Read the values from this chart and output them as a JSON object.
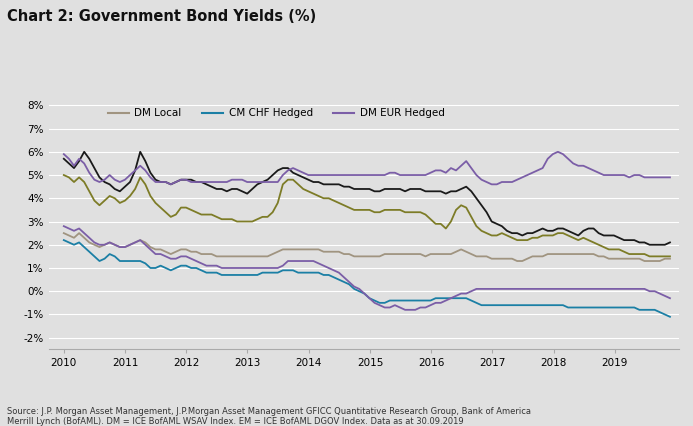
{
  "title": "Chart 2: Government Bond Yields (%)",
  "background_color": "#e0e0e0",
  "source_text": "Source: J.P. Morgan Asset Management, J.P.Morgan Asset Management GFICC Quantitative Research Group, Bank of America\nMerrill Lynch (BofAML). DM = ICE BofAML WSAV Index. EM = ICE BofAML DGOV Index. Data as at 30.09.2019",
  "ylim": [
    -0.025,
    0.085
  ],
  "yticks": [
    -0.02,
    -0.01,
    0.0,
    0.01,
    0.02,
    0.03,
    0.04,
    0.05,
    0.06,
    0.07,
    0.08
  ],
  "ytick_labels": [
    "-2%",
    "-1%",
    "0%",
    "1%",
    "2%",
    "3%",
    "4%",
    "5%",
    "6%",
    "7%",
    "8%"
  ],
  "xlim": [
    2009.75,
    2020.05
  ],
  "xticks": [
    2010,
    2011,
    2012,
    2013,
    2014,
    2015,
    2016,
    2017,
    2018,
    2019
  ],
  "lines": [
    {
      "key": "black",
      "color": "#1a1a1a",
      "linewidth": 1.3,
      "label": null,
      "zorder": 4,
      "values": [
        0.057,
        0.055,
        0.053,
        0.056,
        0.06,
        0.057,
        0.053,
        0.049,
        0.047,
        0.046,
        0.044,
        0.043,
        0.045,
        0.047,
        0.052,
        0.06,
        0.056,
        0.051,
        0.048,
        0.047,
        0.047,
        0.046,
        0.047,
        0.048,
        0.048,
        0.048,
        0.047,
        0.047,
        0.046,
        0.045,
        0.044,
        0.044,
        0.043,
        0.044,
        0.044,
        0.043,
        0.042,
        0.044,
        0.046,
        0.047,
        0.048,
        0.05,
        0.052,
        0.053,
        0.053,
        0.051,
        0.05,
        0.049,
        0.048,
        0.047,
        0.047,
        0.046,
        0.046,
        0.046,
        0.046,
        0.045,
        0.045,
        0.044,
        0.044,
        0.044,
        0.044,
        0.043,
        0.043,
        0.044,
        0.044,
        0.044,
        0.044,
        0.043,
        0.044,
        0.044,
        0.044,
        0.043,
        0.043,
        0.043,
        0.043,
        0.042,
        0.043,
        0.043,
        0.044,
        0.045,
        0.043,
        0.04,
        0.037,
        0.034,
        0.03,
        0.029,
        0.028,
        0.026,
        0.025,
        0.025,
        0.024,
        0.025,
        0.025,
        0.026,
        0.027,
        0.026,
        0.026,
        0.027,
        0.027,
        0.026,
        0.025,
        0.024,
        0.026,
        0.027,
        0.027,
        0.025,
        0.024,
        0.024,
        0.024,
        0.023,
        0.022,
        0.022,
        0.022,
        0.021,
        0.021,
        0.02,
        0.02,
        0.02,
        0.02,
        0.021
      ]
    },
    {
      "key": "olive",
      "color": "#7d7c27",
      "linewidth": 1.3,
      "label": null,
      "zorder": 3,
      "values": [
        0.05,
        0.049,
        0.047,
        0.049,
        0.047,
        0.043,
        0.039,
        0.037,
        0.039,
        0.041,
        0.04,
        0.038,
        0.039,
        0.041,
        0.044,
        0.049,
        0.046,
        0.041,
        0.038,
        0.036,
        0.034,
        0.032,
        0.033,
        0.036,
        0.036,
        0.035,
        0.034,
        0.033,
        0.033,
        0.033,
        0.032,
        0.031,
        0.031,
        0.031,
        0.03,
        0.03,
        0.03,
        0.03,
        0.031,
        0.032,
        0.032,
        0.034,
        0.038,
        0.046,
        0.048,
        0.048,
        0.046,
        0.044,
        0.043,
        0.042,
        0.041,
        0.04,
        0.04,
        0.039,
        0.038,
        0.037,
        0.036,
        0.035,
        0.035,
        0.035,
        0.035,
        0.034,
        0.034,
        0.035,
        0.035,
        0.035,
        0.035,
        0.034,
        0.034,
        0.034,
        0.034,
        0.033,
        0.031,
        0.029,
        0.029,
        0.027,
        0.03,
        0.035,
        0.037,
        0.036,
        0.032,
        0.028,
        0.026,
        0.025,
        0.024,
        0.024,
        0.025,
        0.024,
        0.023,
        0.022,
        0.022,
        0.022,
        0.023,
        0.023,
        0.024,
        0.024,
        0.024,
        0.025,
        0.025,
        0.024,
        0.023,
        0.022,
        0.023,
        0.022,
        0.021,
        0.02,
        0.019,
        0.018,
        0.018,
        0.018,
        0.017,
        0.016,
        0.016,
        0.016,
        0.016,
        0.015,
        0.015,
        0.015,
        0.015,
        0.015
      ]
    },
    {
      "key": "gray",
      "color": "#a09480",
      "linewidth": 1.3,
      "label": "DM Local",
      "zorder": 2,
      "values": [
        0.025,
        0.024,
        0.023,
        0.025,
        0.023,
        0.021,
        0.02,
        0.019,
        0.02,
        0.021,
        0.02,
        0.019,
        0.019,
        0.02,
        0.021,
        0.022,
        0.021,
        0.019,
        0.018,
        0.018,
        0.017,
        0.016,
        0.017,
        0.018,
        0.018,
        0.017,
        0.017,
        0.016,
        0.016,
        0.016,
        0.015,
        0.015,
        0.015,
        0.015,
        0.015,
        0.015,
        0.015,
        0.015,
        0.015,
        0.015,
        0.015,
        0.016,
        0.017,
        0.018,
        0.018,
        0.018,
        0.018,
        0.018,
        0.018,
        0.018,
        0.018,
        0.017,
        0.017,
        0.017,
        0.017,
        0.016,
        0.016,
        0.015,
        0.015,
        0.015,
        0.015,
        0.015,
        0.015,
        0.016,
        0.016,
        0.016,
        0.016,
        0.016,
        0.016,
        0.016,
        0.016,
        0.015,
        0.016,
        0.016,
        0.016,
        0.016,
        0.016,
        0.017,
        0.018,
        0.017,
        0.016,
        0.015,
        0.015,
        0.015,
        0.014,
        0.014,
        0.014,
        0.014,
        0.014,
        0.013,
        0.013,
        0.014,
        0.015,
        0.015,
        0.015,
        0.016,
        0.016,
        0.016,
        0.016,
        0.016,
        0.016,
        0.016,
        0.016,
        0.016,
        0.016,
        0.015,
        0.015,
        0.014,
        0.014,
        0.014,
        0.014,
        0.014,
        0.014,
        0.014,
        0.013,
        0.013,
        0.013,
        0.013,
        0.014,
        0.014
      ]
    },
    {
      "key": "teal",
      "color": "#1b7fa5",
      "linewidth": 1.3,
      "label": "CM CHF Hedged",
      "zorder": 5,
      "values": [
        0.022,
        0.021,
        0.02,
        0.021,
        0.019,
        0.017,
        0.015,
        0.013,
        0.014,
        0.016,
        0.015,
        0.013,
        0.013,
        0.013,
        0.013,
        0.013,
        0.012,
        0.01,
        0.01,
        0.011,
        0.01,
        0.009,
        0.01,
        0.011,
        0.011,
        0.01,
        0.01,
        0.009,
        0.008,
        0.008,
        0.008,
        0.007,
        0.007,
        0.007,
        0.007,
        0.007,
        0.007,
        0.007,
        0.007,
        0.008,
        0.008,
        0.008,
        0.008,
        0.009,
        0.009,
        0.009,
        0.008,
        0.008,
        0.008,
        0.008,
        0.008,
        0.007,
        0.007,
        0.006,
        0.005,
        0.004,
        0.003,
        0.001,
        0.0,
        -0.001,
        -0.003,
        -0.004,
        -0.005,
        -0.005,
        -0.004,
        -0.004,
        -0.004,
        -0.004,
        -0.004,
        -0.004,
        -0.004,
        -0.004,
        -0.004,
        -0.003,
        -0.003,
        -0.003,
        -0.003,
        -0.003,
        -0.003,
        -0.003,
        -0.004,
        -0.005,
        -0.006,
        -0.006,
        -0.006,
        -0.006,
        -0.006,
        -0.006,
        -0.006,
        -0.006,
        -0.006,
        -0.006,
        -0.006,
        -0.006,
        -0.006,
        -0.006,
        -0.006,
        -0.006,
        -0.006,
        -0.007,
        -0.007,
        -0.007,
        -0.007,
        -0.007,
        -0.007,
        -0.007,
        -0.007,
        -0.007,
        -0.007,
        -0.007,
        -0.007,
        -0.007,
        -0.007,
        -0.008,
        -0.008,
        -0.008,
        -0.008,
        -0.009,
        -0.01,
        -0.011
      ]
    },
    {
      "key": "purple_high",
      "color": "#7b5ea7",
      "linewidth": 1.3,
      "label": "DM EUR Hedged",
      "zorder": 6,
      "values": [
        0.059,
        0.057,
        0.054,
        0.057,
        0.055,
        0.051,
        0.048,
        0.047,
        0.048,
        0.05,
        0.048,
        0.047,
        0.048,
        0.05,
        0.052,
        0.054,
        0.052,
        0.049,
        0.047,
        0.047,
        0.047,
        0.046,
        0.047,
        0.048,
        0.048,
        0.047,
        0.047,
        0.047,
        0.047,
        0.047,
        0.047,
        0.047,
        0.047,
        0.048,
        0.048,
        0.048,
        0.047,
        0.047,
        0.047,
        0.047,
        0.047,
        0.047,
        0.047,
        0.05,
        0.052,
        0.053,
        0.052,
        0.051,
        0.05,
        0.05,
        0.05,
        0.05,
        0.05,
        0.05,
        0.05,
        0.05,
        0.05,
        0.05,
        0.05,
        0.05,
        0.05,
        0.05,
        0.05,
        0.05,
        0.051,
        0.051,
        0.05,
        0.05,
        0.05,
        0.05,
        0.05,
        0.05,
        0.051,
        0.052,
        0.052,
        0.051,
        0.053,
        0.052,
        0.054,
        0.056,
        0.053,
        0.05,
        0.048,
        0.047,
        0.046,
        0.046,
        0.047,
        0.047,
        0.047,
        0.048,
        0.049,
        0.05,
        0.051,
        0.052,
        0.053,
        0.057,
        0.059,
        0.06,
        0.059,
        0.057,
        0.055,
        0.054,
        0.054,
        0.053,
        0.052,
        0.051,
        0.05,
        0.05,
        0.05,
        0.05,
        0.05,
        0.049,
        0.05,
        0.05,
        0.049,
        0.049,
        0.049,
        0.049,
        0.049,
        0.049
      ]
    },
    {
      "key": "purple_low",
      "color": "#7b5ea7",
      "linewidth": 1.3,
      "label": null,
      "zorder": 6,
      "values": [
        0.028,
        0.027,
        0.026,
        0.027,
        0.025,
        0.023,
        0.021,
        0.02,
        0.02,
        0.021,
        0.02,
        0.019,
        0.019,
        0.02,
        0.021,
        0.022,
        0.02,
        0.018,
        0.016,
        0.016,
        0.015,
        0.014,
        0.014,
        0.015,
        0.015,
        0.014,
        0.013,
        0.012,
        0.011,
        0.011,
        0.011,
        0.01,
        0.01,
        0.01,
        0.01,
        0.01,
        0.01,
        0.01,
        0.01,
        0.01,
        0.01,
        0.01,
        0.01,
        0.011,
        0.013,
        0.013,
        0.013,
        0.013,
        0.013,
        0.013,
        0.012,
        0.011,
        0.01,
        0.009,
        0.008,
        0.006,
        0.004,
        0.002,
        0.001,
        -0.001,
        -0.003,
        -0.005,
        -0.006,
        -0.007,
        -0.007,
        -0.006,
        -0.007,
        -0.008,
        -0.008,
        -0.008,
        -0.007,
        -0.007,
        -0.006,
        -0.005,
        -0.005,
        -0.004,
        -0.003,
        -0.002,
        -0.001,
        -0.001,
        0.0,
        0.001,
        0.001,
        0.001,
        0.001,
        0.001,
        0.001,
        0.001,
        0.001,
        0.001,
        0.001,
        0.001,
        0.001,
        0.001,
        0.001,
        0.001,
        0.001,
        0.001,
        0.001,
        0.001,
        0.001,
        0.001,
        0.001,
        0.001,
        0.001,
        0.001,
        0.001,
        0.001,
        0.001,
        0.001,
        0.001,
        0.001,
        0.001,
        0.001,
        0.001,
        0.0,
        0.0,
        -0.001,
        -0.002,
        -0.003
      ]
    }
  ],
  "legend_labels": [
    "DM Local",
    "CM CHF Hedged",
    "DM EUR Hedged"
  ],
  "legend_colors": [
    "#a09480",
    "#1b7fa5",
    "#7b5ea7"
  ]
}
